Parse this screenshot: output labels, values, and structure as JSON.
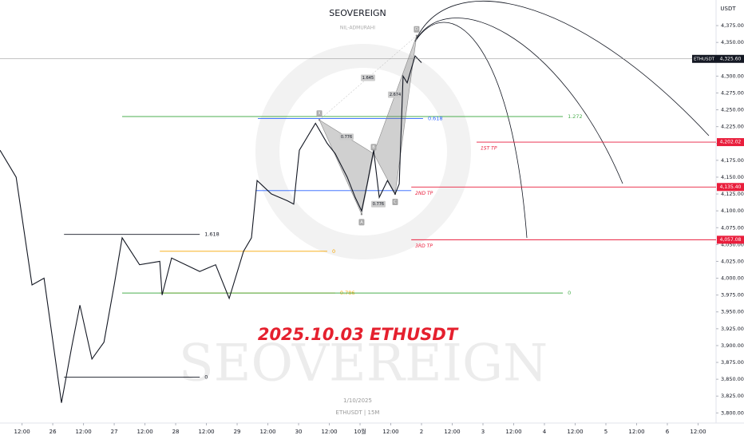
{
  "chart_data": {
    "type": "line",
    "title": "SEOVEREIGN",
    "subtitle": "NIL-ADMURAHI",
    "headline": "2025.10.03 ETHUSDT",
    "watermark": "SEOVEREIGN",
    "date_note": "1/10/2025",
    "symbol_note": "ETHUSDT | 15M",
    "currency": "USDT",
    "series": [
      {
        "name": "ETHUSDT",
        "color": "#131722",
        "x": [
          -20.6,
          -14.3,
          -8.1,
          -3.4,
          3.4,
          7.5,
          10.6,
          15.3,
          20.0,
          24.0,
          27.1,
          33.9,
          41.8,
          42.7,
          46.4,
          57.4,
          63.6,
          68.9,
          74.5,
          77.6,
          79.8,
          85.4,
          91.6,
          94.1,
          96.3,
          102.6,
          107.2,
          110.3,
          115.0,
          118.1,
          120.6,
          122.8,
          125.3,
          127.5,
          130.7,
          133.7,
          135.3,
          136.8,
          138.4,
          141.5,
          144.0
        ],
        "values": [
          4190,
          4150,
          3990,
          4000,
          3815,
          3900,
          3960,
          3880,
          3905,
          3990,
          4060,
          4020,
          4025,
          3975,
          4030,
          4010,
          4020,
          3970,
          4040,
          4060,
          4145,
          4125,
          4115,
          4110,
          4190,
          4230,
          4200,
          4185,
          4150,
          4120,
          4100,
          4140,
          4190,
          4120,
          4145,
          4125,
          4140,
          4300,
          4290,
          4330,
          4320
        ]
      }
    ],
    "last_price": {
      "value": 4325.6,
      "label": "4,325.60"
    },
    "targets": [
      {
        "name": "1ST TP",
        "value": 4202.02,
        "label": "4,202.02",
        "x": 165.5
      },
      {
        "name": "2ND TP",
        "value": 4135.4,
        "label": "4,135.40",
        "x": 140.0
      },
      {
        "name": "3RD TP",
        "value": 4057.08,
        "label": "4,057.08",
        "x": 140.0
      }
    ],
    "levels": [
      {
        "label": "1.618",
        "value": 4065,
        "x": [
          4.4,
          57.4
        ],
        "color": "#131722"
      },
      {
        "label": "0",
        "value": 3853,
        "x": [
          4.4,
          57.4
        ],
        "color": "#131722"
      },
      {
        "label": "0",
        "value": 4040,
        "x": [
          41.8,
          107.2
        ],
        "color": "#f7a600"
      },
      {
        "label": "0.786",
        "value": 3978,
        "x": [
          41.8,
          110.3
        ],
        "color": "#f7a600"
      },
      {
        "label": "0",
        "value": 3978,
        "x": [
          27.1,
          199.2
        ],
        "color": "#4caf50"
      },
      {
        "label": "1.272",
        "value": 4240,
        "x": [
          27.1,
          199.2
        ],
        "color": "#4caf50"
      },
      {
        "label": "0.618",
        "value": 4237,
        "x": [
          80.1,
          144.6
        ],
        "color": "#2962ff"
      },
      {
        "value": 4130,
        "x": [
          79.2,
          140.0
        ],
        "color": "#2962ff"
      }
    ],
    "pattern": {
      "points": [
        {
          "label": "X",
          "x": 104.1,
          "value": 4235
        },
        {
          "label": "A",
          "x": 120.6,
          "value": 4095
        },
        {
          "label": "B",
          "x": 125.3,
          "value": 4185
        },
        {
          "label": "C",
          "x": 133.7,
          "value": 4125
        },
        {
          "label": "D",
          "x": 142.1,
          "value": 4360
        }
      ],
      "ratios": [
        "0.776",
        "1.645",
        "2.674",
        "0.776"
      ]
    },
    "xlim": [
      -20.6,
      258.4
    ],
    "ylim": [
      3785,
      4413
    ],
    "xticks": [
      {
        "value": -12,
        "label": "12:00"
      },
      {
        "value": 0,
        "label": "26"
      },
      {
        "value": 12,
        "label": "12:00"
      },
      {
        "value": 24,
        "label": "27"
      },
      {
        "value": 36,
        "label": "12:00"
      },
      {
        "value": 48,
        "label": "28"
      },
      {
        "value": 60,
        "label": "12:00"
      },
      {
        "value": 72,
        "label": "29"
      },
      {
        "value": 84,
        "label": "12:00"
      },
      {
        "value": 96,
        "label": "30"
      },
      {
        "value": 108,
        "label": "12:00"
      },
      {
        "value": 120,
        "label": "10월"
      },
      {
        "value": 132,
        "label": "12:00"
      },
      {
        "value": 144,
        "label": "2"
      },
      {
        "value": 156,
        "label": "12:00"
      },
      {
        "value": 168,
        "label": "3"
      },
      {
        "value": 180,
        "label": "12:00"
      },
      {
        "value": 192,
        "label": "4"
      },
      {
        "value": 204,
        "label": "12:00"
      },
      {
        "value": 216,
        "label": "5"
      },
      {
        "value": 228,
        "label": "12:00"
      },
      {
        "value": 240,
        "label": "6"
      },
      {
        "value": 252,
        "label": "12:00"
      }
    ],
    "yticks": [
      {
        "value": 3800,
        "label": "3,800.00"
      },
      {
        "value": 3825,
        "label": "3,825.00"
      },
      {
        "value": 3850,
        "label": "3,850.00"
      },
      {
        "value": 3875,
        "label": "3,875.00"
      },
      {
        "value": 3900,
        "label": "3,900.00"
      },
      {
        "value": 3925,
        "label": "3,925.00"
      },
      {
        "value": 3950,
        "label": "3,950.00"
      },
      {
        "value": 3975,
        "label": "3,975.00"
      },
      {
        "value": 4000,
        "label": "4,000.00"
      },
      {
        "value": 4025,
        "label": "4,025.00"
      },
      {
        "value": 4050,
        "label": "4,050.00"
      },
      {
        "value": 4075,
        "label": "4,075.00"
      },
      {
        "value": 4100,
        "label": "4,100.00"
      },
      {
        "value": 4125,
        "label": "4,125.00"
      },
      {
        "value": 4150,
        "label": "4,150.00"
      },
      {
        "value": 4175,
        "label": "4,175.00"
      },
      {
        "value": 4200,
        "label": "4,200.00"
      },
      {
        "value": 4225,
        "label": "4,225.00"
      },
      {
        "value": 4250,
        "label": "4,250.00"
      },
      {
        "value": 4275,
        "label": "4,275.00"
      },
      {
        "value": 4300,
        "label": "4,300.00"
      },
      {
        "value": 4325,
        "label": "4,325.00"
      },
      {
        "value": 4350,
        "label": "4,350.00"
      },
      {
        "value": 4375,
        "label": "4,375.00"
      }
    ],
    "target_color": "#e91e3c",
    "grid": false
  }
}
